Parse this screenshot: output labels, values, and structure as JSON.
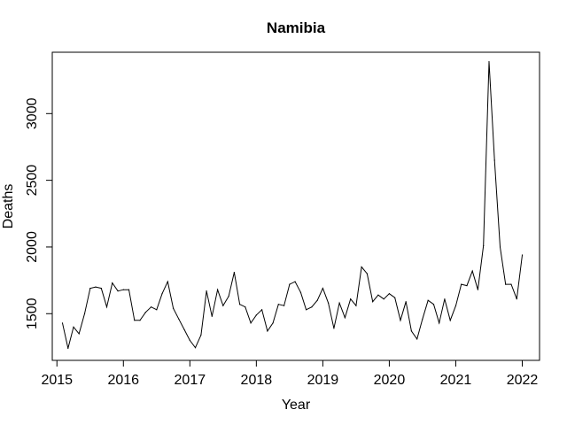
{
  "chart_data": {
    "type": "line",
    "title": "Namibia",
    "xlabel": "Year",
    "ylabel": "Deaths",
    "xlim": [
      2014.93,
      2022.26
    ],
    "ylim": [
      1150,
      3460
    ],
    "xticks": [
      2015,
      2016,
      2017,
      2018,
      2019,
      2020,
      2021,
      2022
    ],
    "yticks": [
      1500,
      2000,
      2500,
      3000
    ],
    "grid": false,
    "series": [
      {
        "color": "#000000",
        "x": [
          2015.083,
          2015.167,
          2015.25,
          2015.333,
          2015.417,
          2015.5,
          2015.583,
          2015.667,
          2015.75,
          2015.833,
          2015.917,
          2016.0,
          2016.083,
          2016.167,
          2016.25,
          2016.333,
          2016.417,
          2016.5,
          2016.583,
          2016.667,
          2016.75,
          2016.833,
          2016.917,
          2017.0,
          2017.083,
          2017.167,
          2017.25,
          2017.333,
          2017.417,
          2017.5,
          2017.583,
          2017.667,
          2017.75,
          2017.833,
          2017.917,
          2018.0,
          2018.083,
          2018.167,
          2018.25,
          2018.333,
          2018.417,
          2018.5,
          2018.583,
          2018.667,
          2018.75,
          2018.833,
          2018.917,
          2019.0,
          2019.083,
          2019.167,
          2019.25,
          2019.333,
          2019.417,
          2019.5,
          2019.583,
          2019.667,
          2019.75,
          2019.833,
          2019.917,
          2020.0,
          2020.083,
          2020.167,
          2020.25,
          2020.333,
          2020.417,
          2020.5,
          2020.583,
          2020.667,
          2020.75,
          2020.833,
          2020.917,
          2021.0,
          2021.083,
          2021.167,
          2021.25,
          2021.333,
          2021.417,
          2021.5,
          2021.583,
          2021.667,
          2021.75,
          2021.833,
          2021.917,
          2022.0
        ],
        "values": [
          1430,
          1240,
          1400,
          1350,
          1500,
          1690,
          1700,
          1690,
          1550,
          1730,
          1670,
          1680,
          1680,
          1450,
          1450,
          1510,
          1550,
          1530,
          1650,
          1740,
          1540,
          1460,
          1380,
          1300,
          1245,
          1340,
          1670,
          1480,
          1680,
          1560,
          1630,
          1810,
          1570,
          1550,
          1430,
          1490,
          1530,
          1370,
          1430,
          1570,
          1560,
          1720,
          1740,
          1660,
          1530,
          1550,
          1600,
          1690,
          1580,
          1390,
          1580,
          1470,
          1610,
          1560,
          1850,
          1800,
          1590,
          1640,
          1610,
          1650,
          1620,
          1450,
          1590,
          1370,
          1310,
          1460,
          1600,
          1570,
          1430,
          1610,
          1450,
          1560,
          1720,
          1710,
          1820,
          1680,
          2010,
          3390,
          2650,
          2000,
          1720,
          1720,
          1610,
          1940
        ]
      }
    ]
  }
}
